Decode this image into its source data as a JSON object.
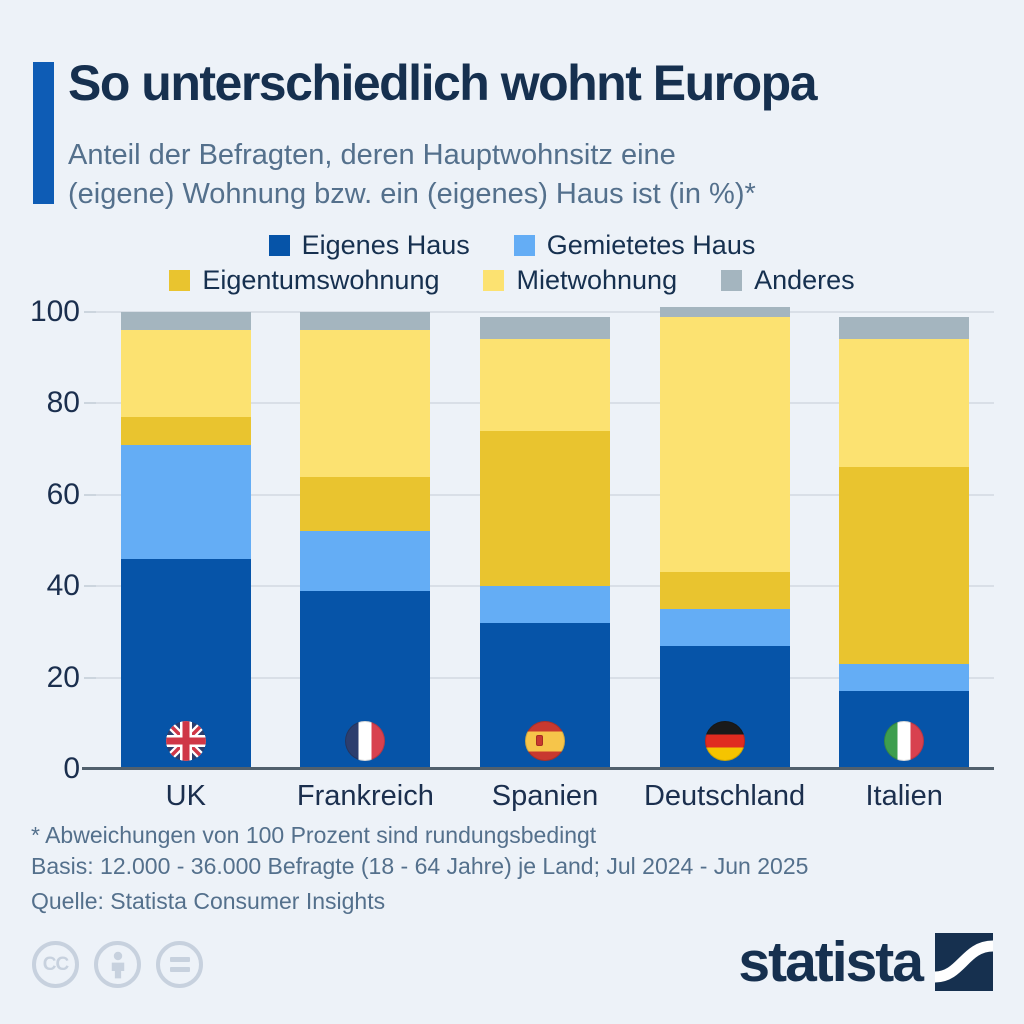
{
  "header": {
    "title": "So unterschiedlich wohnt Europa",
    "subtitle_line1": "Anteil der Befragten, deren Hauptwohnsitz eine",
    "subtitle_line2": "(eigene) Wohnung bzw. ein (eigenes) Haus ist (in %)*"
  },
  "chart_data": {
    "type": "bar",
    "stacked": true,
    "title": "So unterschiedlich wohnt Europa",
    "categories": [
      "UK",
      "Frankreich",
      "Spanien",
      "Deutschland",
      "Italien"
    ],
    "country_codes": [
      "uk",
      "fr",
      "es",
      "de",
      "it"
    ],
    "series": [
      {
        "name": "Eigenes Haus",
        "color": "#0654a8",
        "values": [
          46,
          39,
          32,
          27,
          17
        ]
      },
      {
        "name": "Gemietetes Haus",
        "color": "#64adf5",
        "values": [
          25,
          13,
          8,
          8,
          6
        ]
      },
      {
        "name": "Eigentumswohnung",
        "color": "#e9c42f",
        "values": [
          6,
          12,
          34,
          8,
          43
        ]
      },
      {
        "name": "Mietwohnung",
        "color": "#fce271",
        "values": [
          19,
          32,
          20,
          56,
          28
        ]
      },
      {
        "name": "Anderes",
        "color": "#a4b5bf",
        "values": [
          4,
          4,
          5,
          2,
          5
        ]
      }
    ],
    "legend_rows": [
      [
        0,
        1
      ],
      [
        2,
        3,
        4
      ]
    ],
    "legend_position": "top",
    "ylabel": "",
    "xlabel": "",
    "ylim": [
      0,
      100
    ],
    "yticks": [
      0,
      20,
      40,
      60,
      80,
      100
    ],
    "grid": true
  },
  "footnotes": {
    "rounding": "* Abweichungen von 100 Prozent sind rundungsbedingt",
    "basis": "Basis: 12.000 - 36.000 Befragte (18 - 64 Jahre) je Land; Jul 2024 - Jun 2025",
    "source": "Quelle: Statista Consumer Insights"
  },
  "branding": {
    "logo_text": "statista"
  },
  "license": {
    "icons": [
      "cc-icon",
      "attribution-icon",
      "no-derivatives-icon"
    ],
    "cc_label": "CC"
  },
  "colors": {
    "background": "#edf2f8",
    "accent_bar": "#0e5cb5",
    "title_text": "#16304f",
    "subtitle_text": "#54708c",
    "axis_text": "#1b2f4e",
    "gridline": "#d9dfe7",
    "baseline": "#51606d",
    "license_icons": "#c7d1de"
  }
}
